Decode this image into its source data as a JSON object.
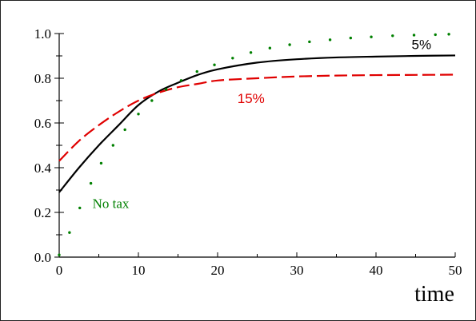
{
  "chart_data": {
    "type": "line",
    "xlabel": "time",
    "ylabel": "",
    "xlim": [
      0,
      50
    ],
    "ylim": [
      0,
      1
    ],
    "xticks": [
      "0",
      "10",
      "20",
      "30",
      "40",
      "50"
    ],
    "yticks": [
      "0.0",
      "0.2",
      "0.4",
      "0.6",
      "0.8",
      "1.0"
    ],
    "grid": false,
    "series": [
      {
        "name": "5%",
        "color": "#000000",
        "style": "solid",
        "x": [
          0,
          2.5,
          5,
          7.5,
          10,
          12.5,
          15,
          17.5,
          20,
          25,
          30,
          35,
          40,
          45,
          50
        ],
        "y": [
          0.29,
          0.4,
          0.5,
          0.59,
          0.68,
          0.74,
          0.78,
          0.815,
          0.84,
          0.87,
          0.885,
          0.893,
          0.897,
          0.9,
          0.902
        ]
      },
      {
        "name": "15%",
        "color": "#e00000",
        "style": "dashed",
        "x": [
          0,
          2.5,
          5,
          7.5,
          10,
          12.5,
          15,
          17.5,
          20,
          25,
          30,
          35,
          40,
          45,
          50
        ],
        "y": [
          0.43,
          0.52,
          0.59,
          0.65,
          0.7,
          0.735,
          0.76,
          0.775,
          0.79,
          0.8,
          0.808,
          0.812,
          0.814,
          0.815,
          0.816
        ]
      },
      {
        "name": "No tax",
        "color": "#008000",
        "style": "dotted",
        "x": [
          0,
          1.3,
          2.6,
          4,
          5.3,
          6.8,
          8.3,
          10,
          11.7,
          13.5,
          15.4,
          17.4,
          19.6,
          21.9,
          24.2,
          26.6,
          29.1,
          31.6,
          34.2,
          36.8,
          39.4,
          42.1,
          44.8,
          47.5,
          49.2
        ],
        "y": [
          0.01,
          0.11,
          0.22,
          0.33,
          0.42,
          0.5,
          0.57,
          0.64,
          0.7,
          0.75,
          0.79,
          0.83,
          0.86,
          0.89,
          0.915,
          0.935,
          0.95,
          0.963,
          0.972,
          0.98,
          0.985,
          0.99,
          0.993,
          0.995,
          0.997
        ]
      }
    ],
    "annotations": [
      {
        "text": "5%",
        "x": 44.5,
        "y": 0.93,
        "color": "#000000"
      },
      {
        "text": "15%",
        "x": 22.5,
        "y": 0.69,
        "color": "#e00000"
      },
      {
        "text": "No tax",
        "x": 4.2,
        "y": 0.22,
        "color": "#008000"
      }
    ]
  }
}
